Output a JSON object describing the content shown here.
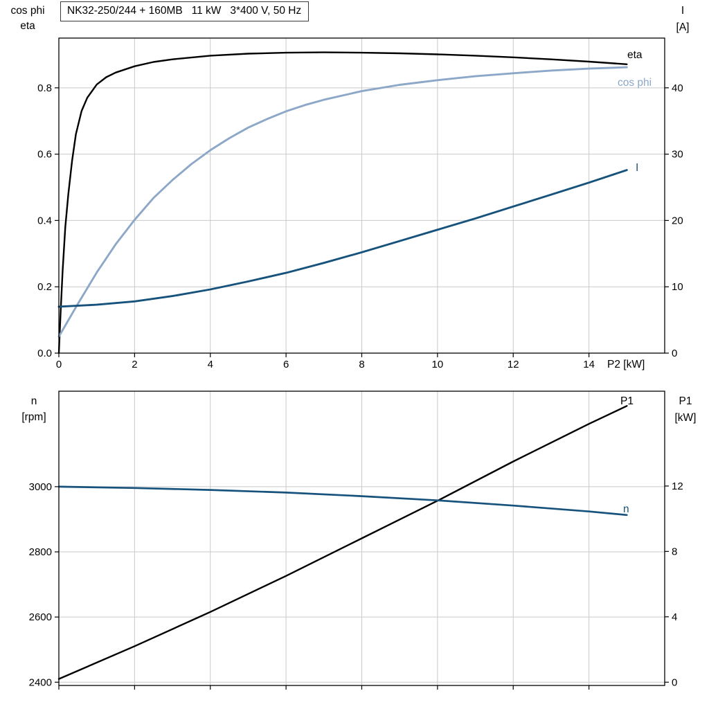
{
  "colors": {
    "grid": "#c9c9c9",
    "axis": "#000000",
    "black_series": "#000000",
    "light_blue_series": "#8ca7c7",
    "dark_blue_series": "#16527c"
  },
  "chart_data": [
    {
      "type": "line",
      "title": "NK32-250/244 + 160MB   11 kW   3*400 V, 50 Hz",
      "x_axis": {
        "label": "P2 [kW]",
        "range": [
          0,
          16
        ],
        "ticks": [
          0,
          2,
          4,
          6,
          8,
          10,
          12,
          14
        ],
        "tick_labels": [
          "0",
          "2",
          "4",
          "6",
          "8",
          "10",
          "12",
          "14"
        ],
        "show_tick_labels": true
      },
      "y_left": {
        "label_lines": [
          "cos phi",
          "eta"
        ],
        "range": [
          0,
          0.95
        ],
        "ticks": [
          0,
          0.2,
          0.4,
          0.6,
          0.8
        ],
        "tick_labels": [
          "0.0",
          "0.2",
          "0.4",
          "0.6",
          "0.8"
        ]
      },
      "y_right": {
        "label_lines": [
          "I",
          "[A]"
        ],
        "range": [
          0,
          47.5
        ],
        "ticks": [
          0,
          10,
          20,
          30,
          40
        ],
        "tick_labels": [
          "0",
          "10",
          "20",
          "30",
          "40"
        ]
      },
      "grid": true,
      "legend_position": "inline-right",
      "series": [
        {
          "name": "eta",
          "axis": "left",
          "color": "#000000",
          "x": [
            0,
            0.05,
            0.1,
            0.17,
            0.25,
            0.35,
            0.45,
            0.6,
            0.75,
            1.0,
            1.25,
            1.5,
            2,
            2.5,
            3,
            4,
            5,
            6,
            7,
            8,
            9,
            10,
            11,
            12,
            13,
            14,
            15
          ],
          "y": [
            0,
            0.13,
            0.25,
            0.38,
            0.48,
            0.58,
            0.66,
            0.73,
            0.77,
            0.81,
            0.832,
            0.846,
            0.865,
            0.878,
            0.886,
            0.897,
            0.903,
            0.906,
            0.907,
            0.906,
            0.904,
            0.901,
            0.897,
            0.892,
            0.886,
            0.879,
            0.871
          ]
        },
        {
          "name": "cos phi",
          "axis": "left",
          "color": "#8ca7c7",
          "x": [
            0,
            0.5,
            1,
            1.5,
            2,
            2.5,
            3,
            3.5,
            4,
            4.5,
            5,
            5.5,
            6,
            6.5,
            7,
            8,
            9,
            10,
            11,
            12,
            13,
            14,
            15
          ],
          "y": [
            0.05,
            0.148,
            0.243,
            0.328,
            0.402,
            0.468,
            0.522,
            0.57,
            0.612,
            0.648,
            0.68,
            0.706,
            0.729,
            0.748,
            0.764,
            0.79,
            0.809,
            0.823,
            0.835,
            0.844,
            0.852,
            0.858,
            0.862
          ]
        },
        {
          "name": "I",
          "axis": "right",
          "color": "#16527c",
          "x": [
            0,
            1,
            2,
            3,
            4,
            5,
            6,
            7,
            8,
            9,
            10,
            11,
            12,
            13,
            14,
            15
          ],
          "y": [
            7.0,
            7.3,
            7.8,
            8.6,
            9.6,
            10.8,
            12.1,
            13.6,
            15.2,
            16.9,
            18.6,
            20.3,
            22.1,
            23.9,
            25.7,
            27.6
          ]
        }
      ]
    },
    {
      "type": "line",
      "title": "",
      "x_axis": {
        "label": "",
        "range": [
          0,
          16
        ],
        "ticks": [
          0,
          2,
          4,
          6,
          8,
          10,
          12,
          14
        ],
        "tick_labels": [],
        "show_tick_labels": false
      },
      "y_left": {
        "label_lines": [
          "n",
          "[rpm]"
        ],
        "range": [
          2390,
          3293
        ],
        "ticks": [
          2400,
          2600,
          2800,
          3000
        ],
        "tick_labels": [
          "2400",
          "2600",
          "2800",
          "3000"
        ]
      },
      "y_right": {
        "label_lines": [
          "P1",
          "[kW]"
        ],
        "range": [
          -0.2,
          17.8
        ],
        "ticks": [
          0,
          4,
          8,
          12
        ],
        "tick_labels": [
          "0",
          "4",
          "8",
          "12"
        ]
      },
      "grid": true,
      "legend_position": "inline-right",
      "series": [
        {
          "name": "P1",
          "axis": "right",
          "color": "#000000",
          "x": [
            0,
            2,
            4,
            6,
            8,
            10,
            12,
            14,
            15
          ],
          "y": [
            0.2,
            2.2,
            4.3,
            6.5,
            8.8,
            11.1,
            13.5,
            15.8,
            16.9
          ]
        },
        {
          "name": "n",
          "axis": "left",
          "color": "#16527c",
          "x": [
            0,
            2,
            4,
            6,
            8,
            10,
            12,
            14,
            15
          ],
          "y": [
            3000,
            2996,
            2990,
            2982,
            2971,
            2958,
            2942,
            2924,
            2913
          ]
        }
      ]
    }
  ]
}
